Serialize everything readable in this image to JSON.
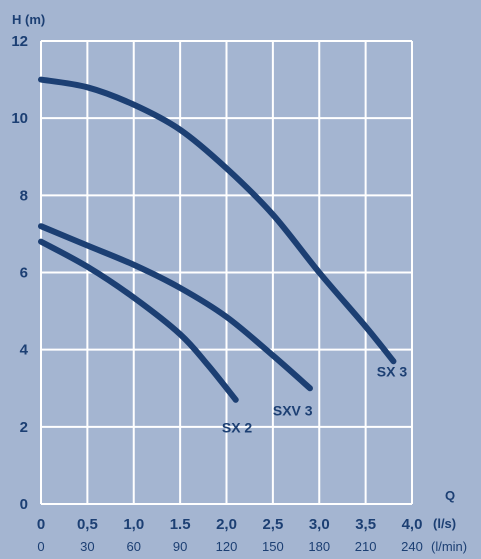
{
  "chart_data": {
    "type": "line",
    "ylabel": "H (m)",
    "xlabel": "Q",
    "x_unit_primary": "(l/s)",
    "x_unit_secondary": "(l/min)",
    "xlim": [
      0,
      4.0
    ],
    "ylim": [
      0,
      12
    ],
    "grid": true,
    "x_ticks": [
      {
        "v": 0,
        "label": "0",
        "label2": "0"
      },
      {
        "v": 0.5,
        "label": "0,5",
        "label2": "30"
      },
      {
        "v": 1.0,
        "label": "1,0",
        "label2": "60"
      },
      {
        "v": 1.5,
        "label": "1.5",
        "label2": "90"
      },
      {
        "v": 2.0,
        "label": "2,0",
        "label2": "120"
      },
      {
        "v": 2.5,
        "label": "2,5",
        "label2": "150"
      },
      {
        "v": 3.0,
        "label": "3,0",
        "label2": "180"
      },
      {
        "v": 3.5,
        "label": "3,5",
        "label2": "210"
      },
      {
        "v": 4.0,
        "label": "4,0",
        "label2": "240"
      }
    ],
    "y_ticks": [
      {
        "v": 0,
        "label": "0"
      },
      {
        "v": 2,
        "label": "2"
      },
      {
        "v": 4,
        "label": "4"
      },
      {
        "v": 6,
        "label": "6"
      },
      {
        "v": 8,
        "label": "8"
      },
      {
        "v": 10,
        "label": "10"
      },
      {
        "v": 12,
        "label": "12"
      }
    ],
    "series": [
      {
        "name": "SX 3",
        "label_at": [
          3.62,
          3.3
        ],
        "x": [
          0,
          0.5,
          1.0,
          1.5,
          2.0,
          2.5,
          3.0,
          3.5,
          3.8
        ],
        "y": [
          11.0,
          10.8,
          10.35,
          9.7,
          8.7,
          7.5,
          6.0,
          4.6,
          3.7
        ]
      },
      {
        "name": "SXV 3",
        "label_at": [
          2.5,
          2.3
        ],
        "x": [
          0,
          0.5,
          1.0,
          1.5,
          2.0,
          2.5,
          2.9
        ],
        "y": [
          7.2,
          6.7,
          6.2,
          5.6,
          4.85,
          3.85,
          3.0
        ]
      },
      {
        "name": "SX 2",
        "label_at": [
          1.95,
          1.85
        ],
        "x": [
          0,
          0.5,
          1.0,
          1.5,
          1.8,
          2.1
        ],
        "y": [
          6.8,
          6.15,
          5.35,
          4.4,
          3.6,
          2.7
        ]
      }
    ],
    "colors": {
      "background": "#a4b5d1",
      "plot": "#1c3f73",
      "grid": "#ffffff",
      "text": "#1c3f73"
    }
  }
}
